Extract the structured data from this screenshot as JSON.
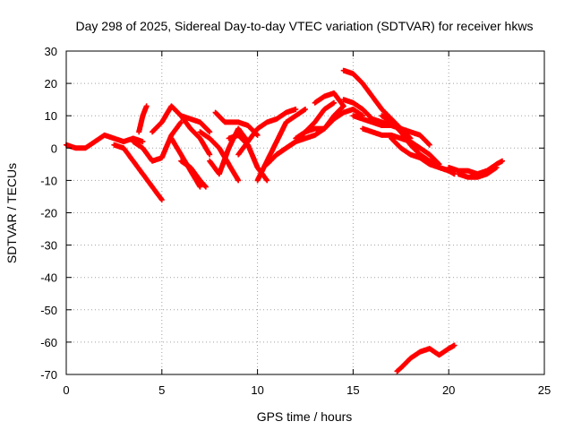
{
  "chart_data": {
    "type": "scatter",
    "title": "Day 298 of 2025, Sidereal Day-to-day VTEC variation (SDTVAR) for receiver hkws",
    "xlabel": "GPS time / hours",
    "ylabel": "SDTVAR / TECUs",
    "xlim": [
      0,
      25
    ],
    "ylim": [
      -70,
      30
    ],
    "xticks": [
      0,
      5,
      10,
      15,
      20,
      25
    ],
    "yticks": [
      -70,
      -60,
      -50,
      -40,
      -30,
      -20,
      -10,
      0,
      10,
      20,
      30
    ],
    "grid": true,
    "marker": "+",
    "series_color": "#ff0000",
    "series": [
      {
        "name": "arc1",
        "x": [
          0,
          0.5,
          1.0,
          1.5,
          2.0,
          2.5,
          3.0,
          3.5,
          4.0
        ],
        "y": [
          1,
          0,
          0,
          2,
          4,
          3,
          2,
          3,
          2
        ]
      },
      {
        "name": "arc2",
        "x": [
          2.5,
          3.0,
          3.5,
          4.0,
          4.5,
          5.0
        ],
        "y": [
          1,
          0,
          -4,
          -8,
          -12,
          -16
        ]
      },
      {
        "name": "arc3",
        "x": [
          3.8,
          4.0,
          4.2
        ],
        "y": [
          5,
          10,
          13
        ]
      },
      {
        "name": "arc4",
        "x": [
          3.5,
          4.0,
          4.5,
          5.0,
          5.5,
          6.0
        ],
        "y": [
          2,
          0,
          -4,
          -3,
          4,
          8
        ]
      },
      {
        "name": "arc5",
        "x": [
          4.5,
          5.0,
          5.5,
          6.0,
          6.5,
          7.0,
          7.5
        ],
        "y": [
          5,
          8,
          13,
          10,
          6,
          3,
          -2
        ]
      },
      {
        "name": "arc6",
        "x": [
          5.5,
          6.0,
          6.5,
          7.0
        ],
        "y": [
          3,
          -2,
          -7,
          -12
        ]
      },
      {
        "name": "arc7",
        "x": [
          6.0,
          6.5,
          7.0,
          7.5
        ],
        "y": [
          10,
          9,
          8,
          5
        ]
      },
      {
        "name": "arc8",
        "x": [
          6.0,
          6.5,
          7.0,
          7.3
        ],
        "y": [
          -4,
          -6,
          -10,
          -12
        ]
      },
      {
        "name": "arc9",
        "x": [
          7.0,
          7.5,
          8.0,
          8.5,
          9.0
        ],
        "y": [
          5,
          3,
          0,
          -5,
          -10
        ]
      },
      {
        "name": "arc10",
        "x": [
          7.5,
          8.0,
          8.5,
          9.0,
          9.5
        ],
        "y": [
          -4,
          -8,
          0,
          6,
          2
        ]
      },
      {
        "name": "arc11",
        "x": [
          7.8,
          8.3,
          9.0,
          9.5,
          10.0
        ],
        "y": [
          11,
          8,
          8,
          7,
          4
        ]
      },
      {
        "name": "arc12",
        "x": [
          8.5,
          9.0,
          9.5,
          10.0,
          10.5
        ],
        "y": [
          3,
          4,
          1,
          -6,
          -10
        ]
      },
      {
        "name": "arc13",
        "x": [
          9.0,
          9.5,
          10.0,
          10.5,
          11.0,
          11.5,
          12.0
        ],
        "y": [
          -2,
          2,
          6,
          8,
          9,
          11,
          12
        ]
      },
      {
        "name": "arc14",
        "x": [
          10.0,
          10.5,
          11.0,
          11.5,
          12.0,
          12.5
        ],
        "y": [
          -10,
          -4,
          2,
          8,
          10,
          12
        ]
      },
      {
        "name": "arc15",
        "x": [
          10.5,
          11.0,
          11.5,
          12.0,
          12.5,
          13.0,
          13.5,
          14.0
        ],
        "y": [
          -5,
          -2,
          0,
          2,
          5,
          8,
          12,
          14
        ]
      },
      {
        "name": "arc16",
        "x": [
          11.0,
          11.5,
          12.0,
          12.5,
          13.0,
          13.5,
          14.0,
          14.5
        ],
        "y": [
          -2,
          0,
          2,
          3,
          4,
          6,
          10,
          13
        ]
      },
      {
        "name": "arc17",
        "x": [
          12.0,
          12.5,
          13.0,
          13.5,
          14.0,
          14.5,
          15.0,
          15.5
        ],
        "y": [
          3,
          5,
          6,
          6,
          9,
          11,
          12,
          10
        ]
      },
      {
        "name": "arc18",
        "x": [
          13.0,
          13.5,
          14.0,
          14.5
        ],
        "y": [
          14,
          16,
          17,
          13
        ]
      },
      {
        "name": "arc19",
        "x": [
          14.5,
          15.0,
          15.5,
          16.0,
          16.5,
          17.0,
          17.5
        ],
        "y": [
          24,
          23,
          20,
          16,
          12,
          9,
          6
        ]
      },
      {
        "name": "arc20",
        "x": [
          14.5,
          15.0,
          15.5,
          16.0,
          16.5,
          17.0,
          17.5,
          18.0
        ],
        "y": [
          15,
          14,
          12,
          9,
          8,
          7,
          6,
          3
        ]
      },
      {
        "name": "arc21",
        "x": [
          15.0,
          15.5,
          16.0,
          16.5,
          17.0,
          17.5,
          18.0,
          18.5,
          19.0
        ],
        "y": [
          10,
          9,
          8,
          7,
          7,
          6,
          5,
          4,
          1
        ]
      },
      {
        "name": "arc22",
        "x": [
          15.5,
          16.0,
          16.5,
          17.0,
          17.5,
          18.0,
          18.5,
          19.0,
          19.5
        ],
        "y": [
          6,
          5,
          4,
          4,
          3,
          2,
          0,
          -2,
          -5
        ]
      },
      {
        "name": "arc23",
        "x": [
          16.5,
          17.0,
          17.5,
          18.0,
          18.5,
          19.0,
          19.5,
          20.0
        ],
        "y": [
          10,
          8,
          5,
          1,
          -2,
          -4,
          -6,
          -7
        ]
      },
      {
        "name": "arc24",
        "x": [
          17.0,
          17.5,
          18.0,
          18.5,
          19.0,
          19.5,
          20.0,
          20.3
        ],
        "y": [
          3,
          0,
          -2,
          -3,
          -5,
          -6,
          -7,
          -8
        ]
      },
      {
        "name": "arc25",
        "x": [
          20.0,
          20.5,
          21.0,
          21.5,
          22.0,
          22.5,
          22.8
        ],
        "y": [
          -6,
          -7,
          -7,
          -8,
          -7,
          -5,
          -4
        ]
      },
      {
        "name": "arc26",
        "x": [
          20.5,
          21.0,
          21.5,
          22.0,
          22.5
        ],
        "y": [
          -8,
          -9,
          -9,
          -8,
          -6
        ]
      },
      {
        "name": "arc27",
        "x": [
          17.3,
          17.5,
          18.0,
          18.5,
          19.0,
          19.5,
          20.0,
          20.3
        ],
        "y": [
          -69,
          -68,
          -65,
          -63,
          -62,
          -64,
          -62,
          -61
        ]
      }
    ]
  }
}
